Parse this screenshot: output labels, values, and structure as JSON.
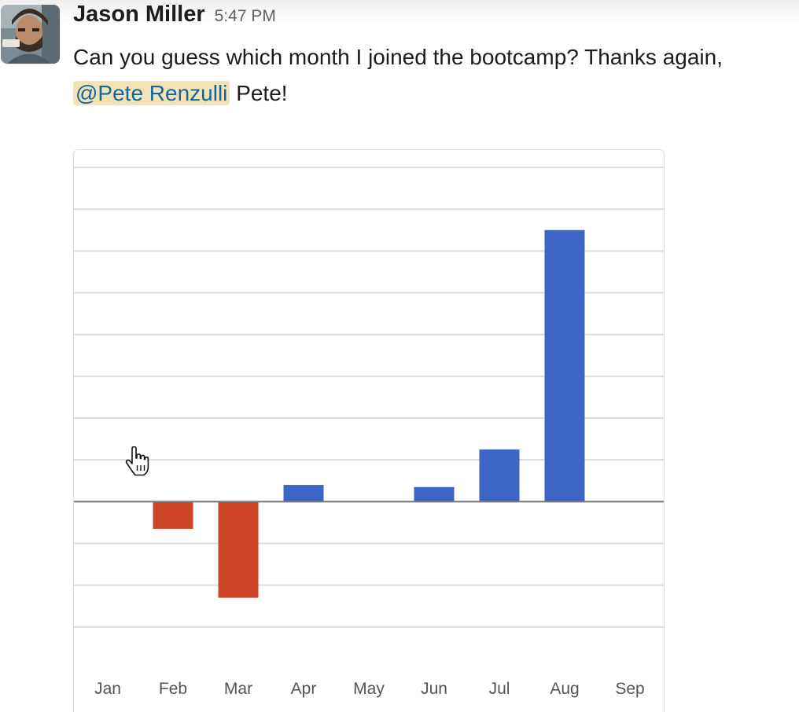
{
  "message": {
    "sender": "Jason Miller",
    "timestamp": "5:47 PM",
    "text_before": "Can you guess which month I joined the bootcamp? Thanks again,",
    "mention": "@Pete Renzulli",
    "text_after": "Pete!"
  },
  "avatar": {
    "icon": "user-photo"
  },
  "cursor": {
    "icon": "hand-pointer-icon"
  },
  "chart_data": {
    "type": "bar",
    "categories": [
      "Jan",
      "Feb",
      "Mar",
      "Apr",
      "May",
      "Jun",
      "Jul",
      "Aug",
      "Sep"
    ],
    "values": [
      0,
      -0.65,
      -2.3,
      0.4,
      0,
      0.35,
      1.25,
      6.5,
      0
    ],
    "ylim": [
      -4,
      8
    ],
    "grid": true,
    "colors": {
      "positive": "#3c65c4",
      "negative": "#cc4525",
      "gridline": "#dcdcdc",
      "baseline": "#7a7a7a",
      "tick_label": "#555555"
    }
  }
}
